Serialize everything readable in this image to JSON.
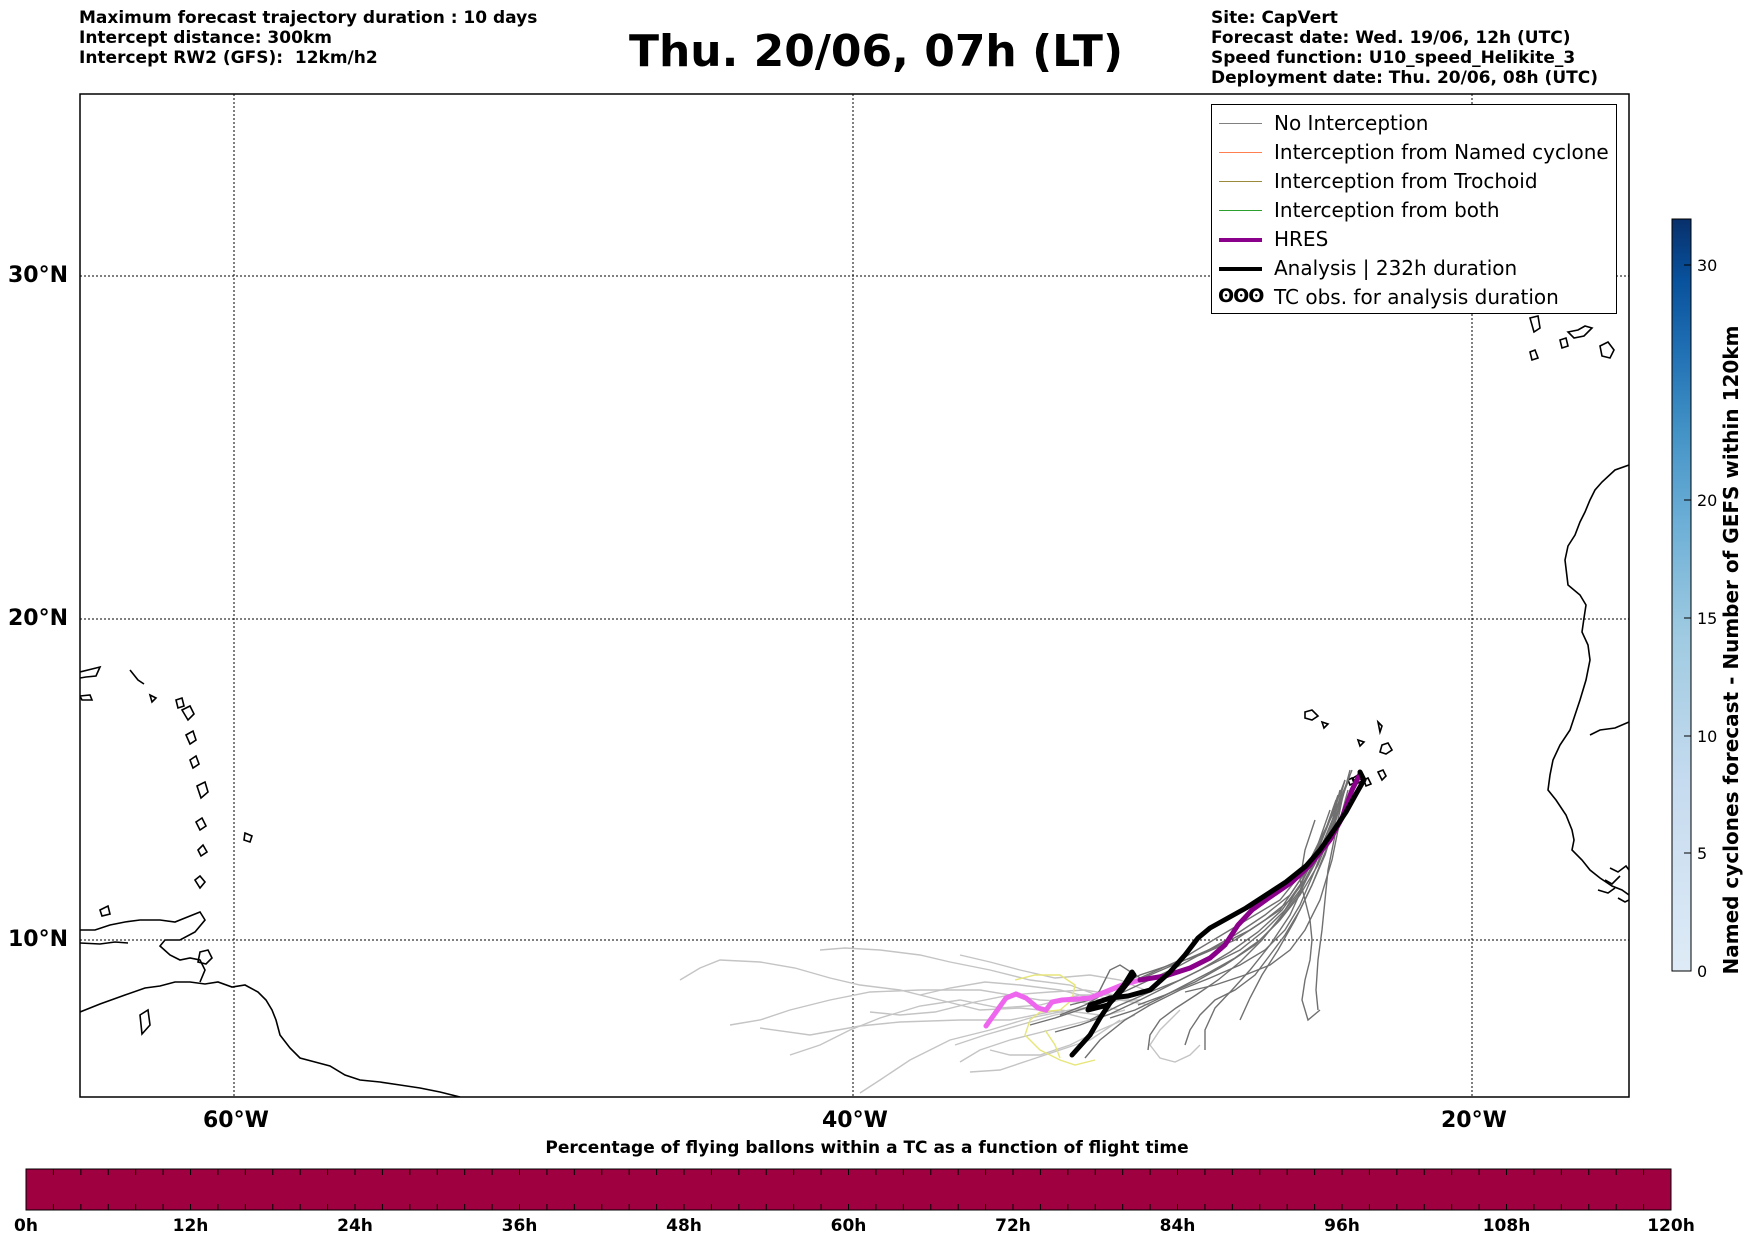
{
  "header": {
    "left_lines": [
      "Maximum forecast trajectory duration : 10 days",
      "Intercept distance: 300km",
      "Intercept RW2 (GFS):  12km/h2"
    ],
    "title": "Thu. 20/06, 07h (LT)",
    "right_lines": [
      "Site: CapVert",
      "Forecast date: Wed. 19/06, 12h (UTC)",
      "Speed function: U10_speed_Helikite_3",
      "Deployment date: Thu. 20/06, 08h (UTC)"
    ]
  },
  "map": {
    "lat_labels": [
      "30°N",
      "20°N",
      "10°N"
    ],
    "lon_labels": [
      "60°W",
      "40°W",
      "20°W"
    ],
    "lat_values": [
      30,
      20,
      10
    ],
    "lon_values": [
      -60,
      -40,
      -20
    ]
  },
  "legend": {
    "items": [
      {
        "label": "No Interception",
        "color": "#808080",
        "style": "thin"
      },
      {
        "label": "Interception from Named cyclone",
        "color": "#ff7f50",
        "style": "thin"
      },
      {
        "label": "Interception from Trochoid",
        "color": "#9b8a3a",
        "style": "thin"
      },
      {
        "label": "Interception from both",
        "color": "#2ca02c",
        "style": "thin"
      },
      {
        "label": "HRES",
        "color": "#8b008b",
        "style": "thick"
      },
      {
        "label": "Analysis | 232h duration",
        "color": "#000000",
        "style": "thick"
      },
      {
        "label": "TC obs. for analysis duration",
        "color": "#000000",
        "style": "symbol",
        "symbol": "ʘʘʘ"
      }
    ]
  },
  "colorbar": {
    "label": "Named cyclones forecast - Number of GEFS within 120km",
    "ticks": [
      "30",
      "20",
      "15",
      "10",
      "5",
      "0"
    ],
    "tick_values": [
      30,
      20,
      15,
      10,
      5,
      0
    ],
    "colors": [
      "#08306b",
      "#08519c",
      "#2171b5",
      "#4292c6",
      "#6baed6",
      "#9ecae1",
      "#c6dbef",
      "#deebf7"
    ]
  },
  "flight_bar": {
    "title": "Percentage of flying ballons within a TC as a function of flight time",
    "ticks": [
      "0h",
      "12h",
      "24h",
      "36h",
      "48h",
      "60h",
      "72h",
      "84h",
      "96h",
      "108h",
      "120h"
    ],
    "color": "#9e0040"
  }
}
